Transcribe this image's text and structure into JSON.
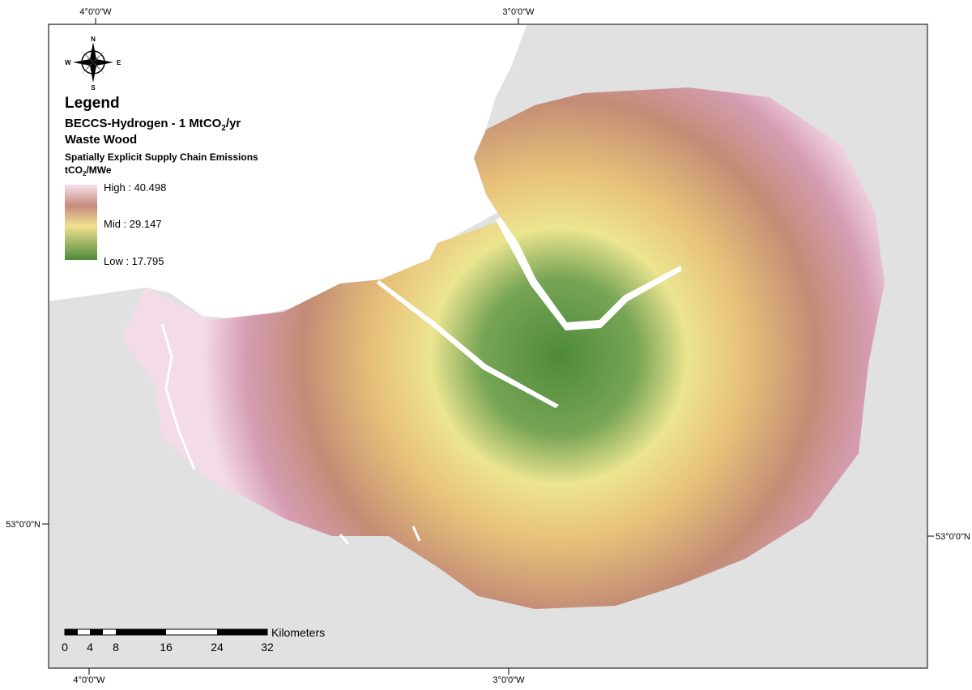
{
  "graticule": {
    "top": [
      "4°0'0\"W",
      "3°0'0\"W"
    ],
    "bottom": [
      "4°0'0\"W",
      "3°0'0\"W"
    ],
    "left": [
      "53°0'0\"N"
    ],
    "right": [
      "53°0'0\"N"
    ]
  },
  "compass": {
    "n": "N",
    "s": "S",
    "e": "E",
    "w": "W"
  },
  "legend": {
    "title": "Legend",
    "layer": [
      "BECCS-Hydrogen - 1 MtCO",
      "2",
      "/yr"
    ],
    "feedstock": "Waste Wood",
    "field": "Spatially Explicit Supply Chain Emissions",
    "unit": [
      "tCO",
      "2",
      "/MWe"
    ],
    "classes": [
      "High : 40.498",
      "Mid : 29.147",
      "Low : 17.795"
    ]
  },
  "scale_bar": {
    "labels": [
      "0",
      "4",
      "8",
      "16",
      "24",
      "32"
    ],
    "unit": "Kilometers"
  }
}
